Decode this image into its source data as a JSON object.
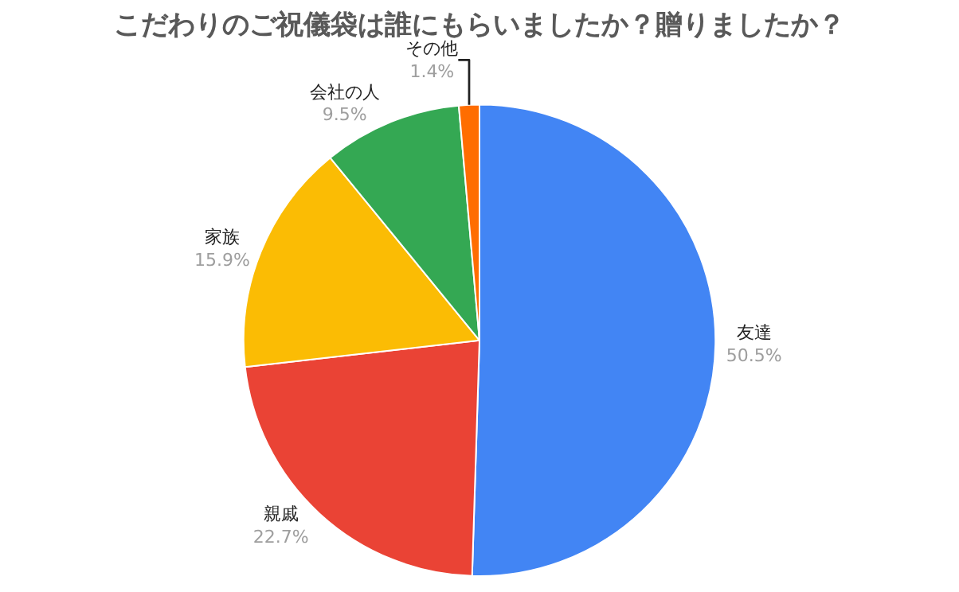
{
  "chart_data": {
    "type": "pie",
    "title": "こだわりのご祝儀袋は誰にもらいましたか？贈りましたか？",
    "categories": [
      "友達",
      "親戚",
      "家族",
      "会社の人",
      "その他"
    ],
    "values": [
      50.5,
      22.7,
      15.9,
      9.5,
      1.4
    ],
    "value_labels": [
      "50.5%",
      "22.7%",
      "15.9%",
      "9.5%",
      "1.4%"
    ],
    "colors": [
      "#4285f4",
      "#ea4335",
      "#fbbc04",
      "#34a853",
      "#ff6d01"
    ],
    "legend": false
  }
}
